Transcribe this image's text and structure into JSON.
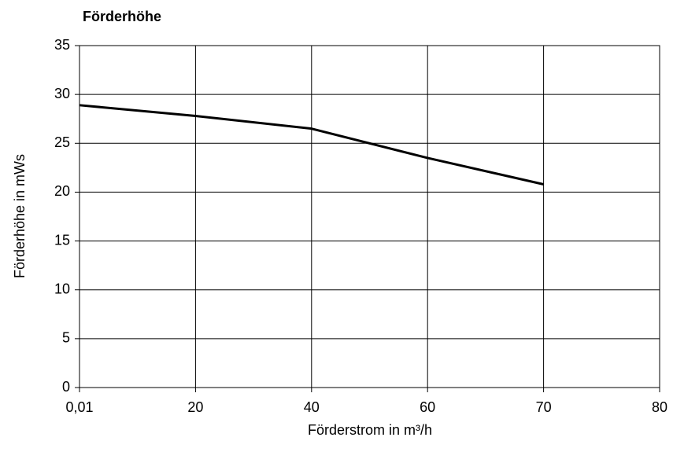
{
  "chart_data": {
    "type": "line",
    "title": "Förderhöhe",
    "x_label": "Förderstrom in m³/h",
    "y_label": "Förderhöhe in mWs",
    "categories": [
      "0,01",
      "20",
      "40",
      "60",
      "70",
      "80"
    ],
    "series": [
      {
        "name": "Förderhöhe",
        "color": "#000000",
        "values": [
          28.9,
          27.8,
          26.5,
          23.5,
          20.8,
          null
        ]
      }
    ],
    "ylim": [
      0,
      35
    ],
    "yticks": [
      0,
      5,
      10,
      15,
      20,
      25,
      30,
      35
    ],
    "grid": true
  }
}
